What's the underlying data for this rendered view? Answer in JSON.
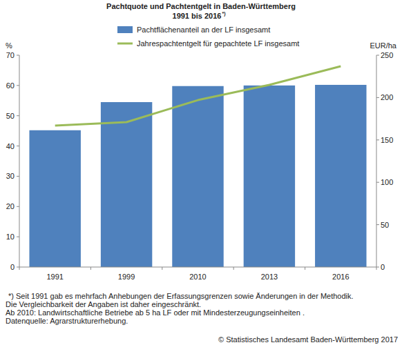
{
  "chart_data": {
    "type": "bar",
    "title": "Pachtquote und Pachtentgelt in Baden-Württemberg",
    "subtitle": "1991 bis 2016",
    "footnote_marker": "*)",
    "categories": [
      "1991",
      "1999",
      "2010",
      "2013",
      "2016"
    ],
    "series": [
      {
        "name": "Pachtflächenanteil an der LF insgesamt",
        "type": "bar",
        "color": "#4f81bd",
        "values": [
          45.2,
          54.5,
          59.8,
          60.0,
          60.2
        ]
      },
      {
        "name": "Jahrespachtentgelt für gepachtete LF insgesamt",
        "type": "line",
        "color": "#9bbb59",
        "axis": "y2",
        "values": [
          167,
          171,
          197,
          215,
          237
        ]
      }
    ],
    "y_label": "%",
    "y2_label": "EUR/ha",
    "ylim": [
      0,
      70
    ],
    "yticks": [
      0,
      10,
      20,
      30,
      40,
      50,
      60,
      70
    ],
    "y2lim": [
      0,
      250
    ],
    "y2ticks": [
      0,
      50,
      100,
      150,
      200,
      250
    ],
    "grid": false,
    "legend": "top",
    "notes": [
      "*) Seit 1991 gab es mehrfach Anhebungen der Erfassungsgrenzen sowie Änderungen in der Methodik.",
      "Die Vergleichbarkeit der Angaben ist daher eingeschränkt.",
      "Ab 2010: Landwirtschaftliche Betriebe ab 5 ha LF oder mit Mindesterzeugungseinheiten .",
      "Datenquelle: Agrarstrukturerhebung."
    ],
    "copyright": "© Statistisches Landesamt Baden-Württemberg 2017"
  }
}
